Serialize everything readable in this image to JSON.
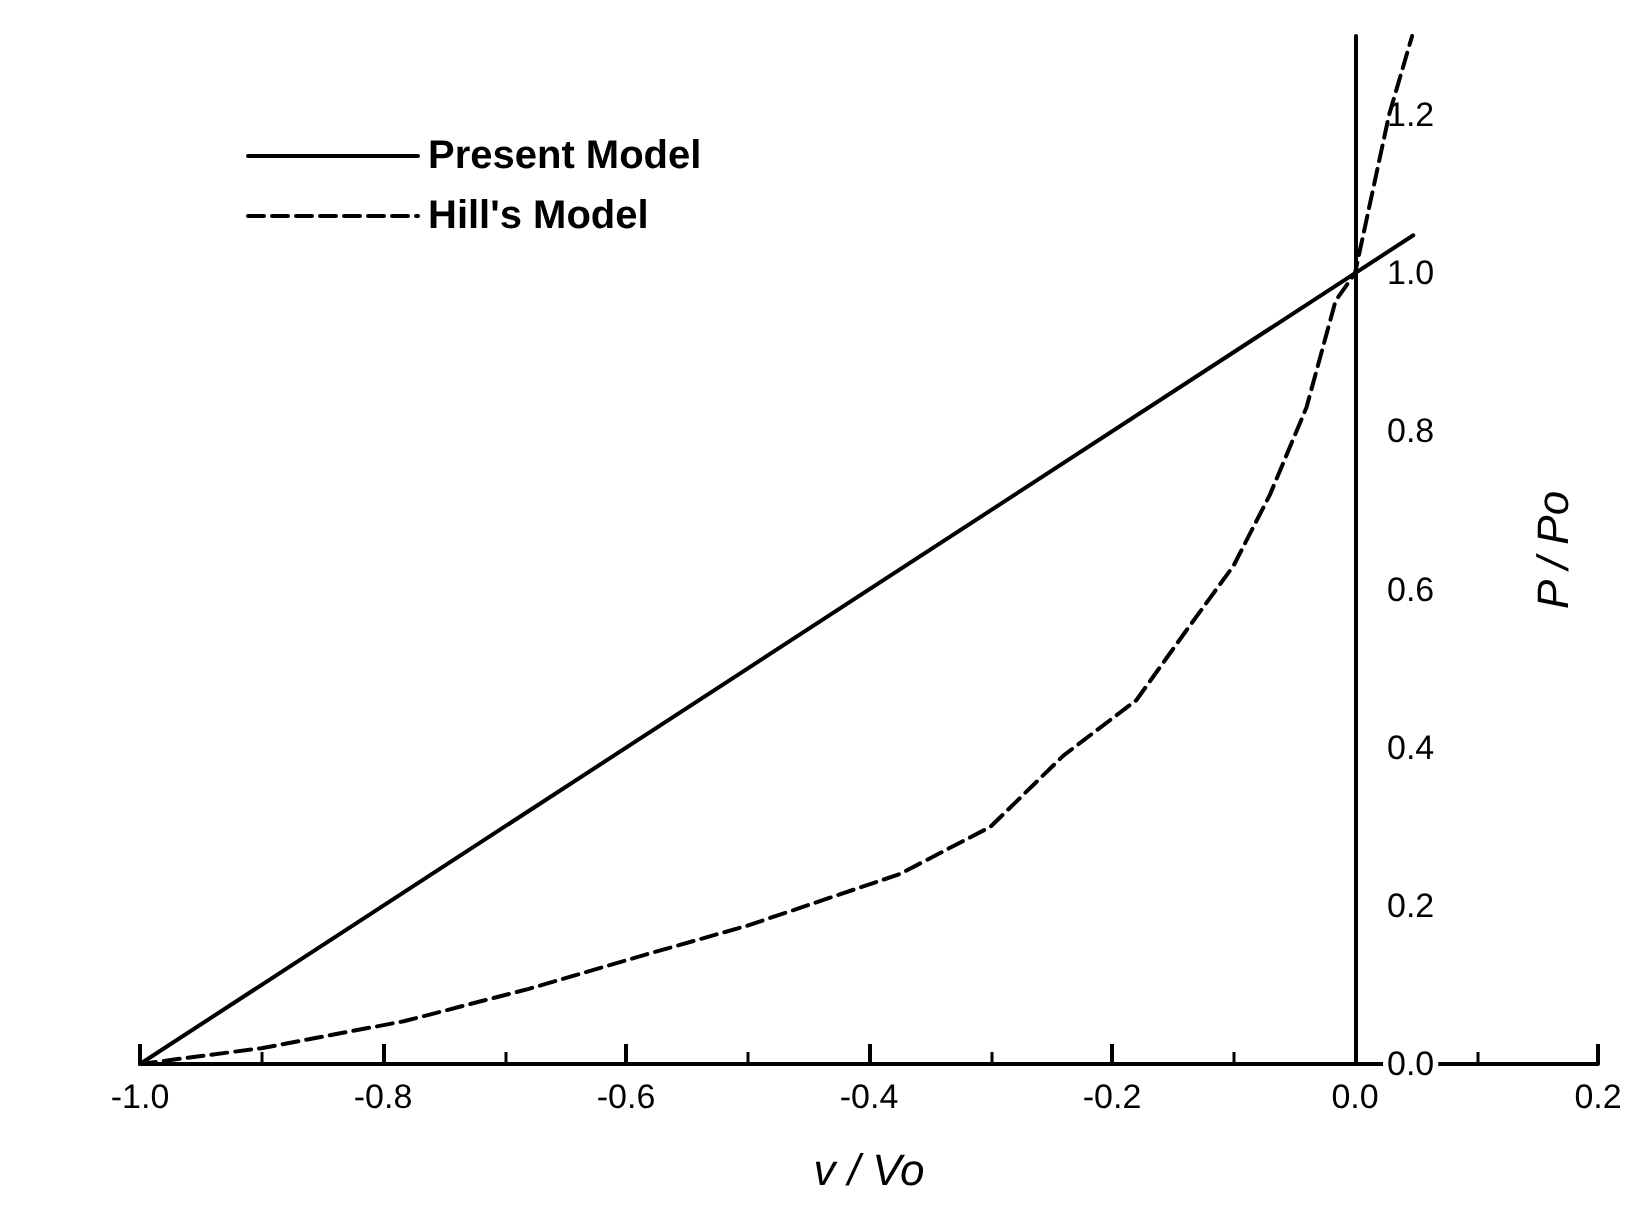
{
  "chart_data": {
    "type": "line",
    "xlabel": "v / Vo",
    "ylabel": "P / Po",
    "xlim": [
      -1.0,
      0.2
    ],
    "ylim": [
      0,
      1.3
    ],
    "xticks": [
      {
        "value": -1,
        "label": "-1.0"
      },
      -0.8,
      -0.6,
      -0.4,
      -0.2,
      {
        "value": 0,
        "label": "0.0"
      },
      0.2
    ],
    "yticks": [
      {
        "value": 0,
        "label": "0.0"
      },
      0.2,
      0.4,
      0.6,
      0.8,
      {
        "value": 1,
        "label": "1.0"
      },
      1.2
    ],
    "grid": false,
    "legend": "top left",
    "marker": "none",
    "series": [
      {
        "name": "Present Model",
        "color": "#000000",
        "line_style": "solid",
        "x": [
          -1.0,
          0.048
        ],
        "values": [
          0,
          1.048
        ]
      },
      {
        "name": "Hill's Model",
        "color": "#000000",
        "line_style": "dashed",
        "x": [
          -1.0,
          -0.9,
          -0.783,
          -0.68,
          -0.58,
          -0.5,
          -0.375,
          -0.3,
          -0.24,
          -0.18,
          -0.138,
          -0.1,
          -0.07,
          -0.04,
          -0.016,
          0.0,
          0.028,
          0.047
        ],
        "values": [
          0,
          0.02,
          0.054,
          0.095,
          0.14,
          0.175,
          0.24,
          0.3,
          0.39,
          0.46,
          0.55,
          0.63,
          0.72,
          0.83,
          0.965,
          1.0,
          1.2,
          1.3
        ]
      }
    ]
  }
}
